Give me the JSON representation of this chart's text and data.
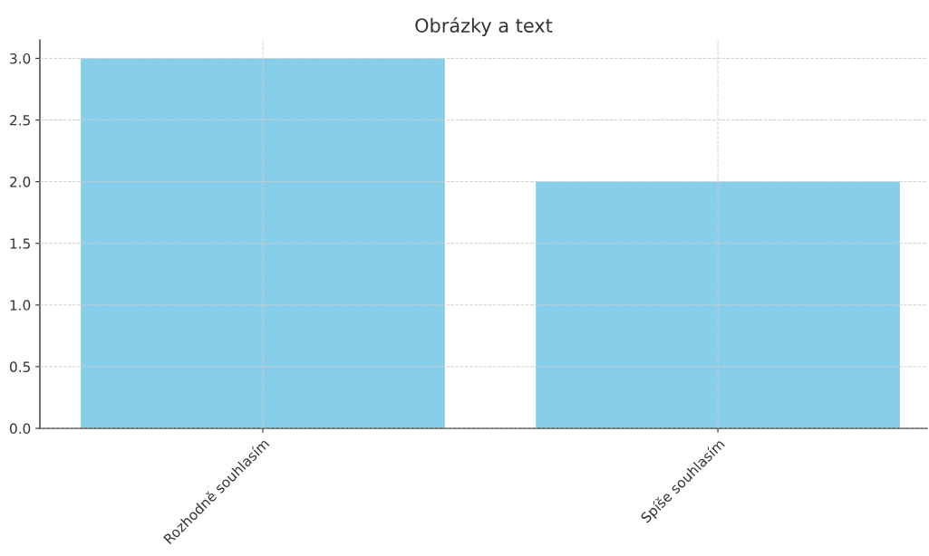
{
  "chart_data": {
    "type": "bar",
    "title": "Obrázky a text",
    "categories": [
      "Rozhodně souhlasím",
      "Spíše souhlasím"
    ],
    "values": [
      3,
      2
    ],
    "color": "#87ceeb",
    "ylim": [
      0,
      3.15
    ],
    "yticks": [
      {
        "value": 0,
        "label": "0.0"
      },
      {
        "value": 0.5,
        "label": "0.5"
      },
      {
        "value": 1,
        "label": "1.0"
      },
      {
        "value": 1.5,
        "label": "1.5"
      },
      {
        "value": 2,
        "label": "2.0"
      },
      {
        "value": 2.5,
        "label": "2.5"
      },
      {
        "value": 3,
        "label": "3.0"
      }
    ],
    "grid": true
  }
}
